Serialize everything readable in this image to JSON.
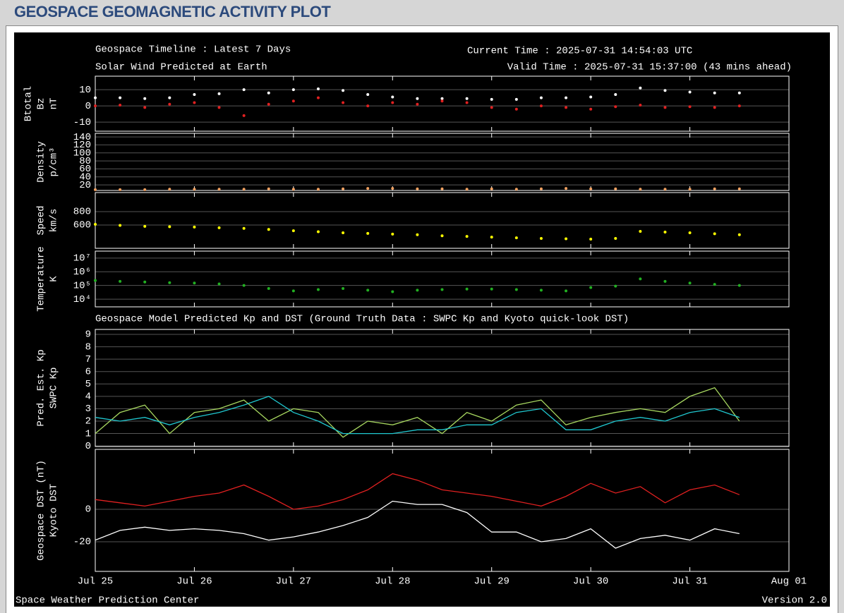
{
  "header": {
    "title": "GEOSPACE GEOMAGNETIC ACTIVITY PLOT"
  },
  "footer": {
    "left": "Space Weather Prediction Center",
    "right": "Version 2.0"
  },
  "chart_data": [
    {
      "type": "scatter",
      "title": "Geospace Timeline : Latest 7 Days",
      "subtitle": "Solar Wind Predicted at Earth",
      "annotations": [
        "Current Time : 2025-07-31 14:54:03 UTC",
        "Valid Time : 2025-07-31 15:37:00 (43 mins ahead)"
      ],
      "y_unit": "nT",
      "y_unit_color": "#ffffff",
      "x": [
        0,
        0.25,
        0.5,
        0.75,
        1,
        1.25,
        1.5,
        1.75,
        2,
        2.25,
        2.5,
        2.75,
        3,
        3.25,
        3.5,
        3.75,
        4,
        4.25,
        4.5,
        4.75,
        5,
        5.25,
        5.5,
        5.75,
        6,
        6.25,
        6.5
      ],
      "series": [
        {
          "name": "Btotal",
          "color": "#ffffff",
          "values": [
            5,
            5,
            4.5,
            5,
            7,
            7.5,
            10,
            8,
            10,
            10.5,
            9.5,
            7,
            5.5,
            4.5,
            4.5,
            4.5,
            4,
            4,
            5,
            5,
            5.5,
            7,
            11,
            9.5,
            8.5,
            8,
            8
          ]
        },
        {
          "name": "Bz",
          "color": "#e02020",
          "values": [
            0,
            0.5,
            -1,
            1,
            2,
            -1,
            -6,
            1,
            3,
            5,
            2,
            0,
            2,
            1,
            3,
            2,
            -1,
            -2,
            0,
            -1,
            -2,
            -0.5,
            0.5,
            -1,
            -0.5,
            -1,
            0
          ]
        }
      ],
      "xlim": [
        0,
        7
      ],
      "ylim": [
        -15.6,
        18.3
      ],
      "yticks": [
        -10,
        0,
        10
      ],
      "grid": true
    },
    {
      "type": "scatter",
      "y_unit": "p/cm³",
      "y_unit_color": "#f0a060",
      "x": [
        0,
        0.25,
        0.5,
        0.75,
        1,
        1.25,
        1.5,
        1.75,
        2,
        2.25,
        2.5,
        2.75,
        3,
        3.25,
        3.5,
        3.75,
        4,
        4.25,
        4.5,
        4.75,
        5,
        5.25,
        5.5,
        5.75,
        6,
        6.25,
        6.5
      ],
      "series": [
        {
          "name": "Density",
          "color": "#f0a060",
          "values": [
            8,
            8,
            8,
            9,
            9,
            9,
            9,
            10,
            9,
            9,
            10,
            11,
            11,
            10,
            10,
            9,
            10,
            9,
            10,
            11,
            10,
            10,
            9,
            9,
            9,
            10,
            10
          ]
        }
      ],
      "xlim": [
        0,
        7
      ],
      "ylim": [
        6,
        149
      ],
      "yticks": [
        20,
        40,
        60,
        80,
        100,
        120,
        140
      ],
      "grid": true
    },
    {
      "type": "scatter",
      "y_unit": "km/s",
      "y_unit_color": "#ffff00",
      "x": [
        0,
        0.25,
        0.5,
        0.75,
        1,
        1.25,
        1.5,
        1.75,
        2,
        2.25,
        2.5,
        2.75,
        3,
        3.25,
        3.5,
        3.75,
        4,
        4.25,
        4.5,
        4.75,
        5,
        5.25,
        5.5,
        5.75,
        6,
        6.25,
        6.5
      ],
      "series": [
        {
          "name": "Speed",
          "color": "#ffff00",
          "values": [
            610,
            595,
            580,
            575,
            570,
            560,
            550,
            535,
            515,
            500,
            485,
            475,
            465,
            455,
            440,
            430,
            420,
            410,
            400,
            395,
            390,
            400,
            505,
            495,
            485,
            470,
            455
          ]
        }
      ],
      "xlim": [
        0,
        7
      ],
      "ylim": [
        253,
        1084
      ],
      "yticks": [
        600,
        800
      ],
      "grid": true
    },
    {
      "type": "scatter",
      "y_unit": "K",
      "y_unit_color": "#22b022",
      "log_y": true,
      "x": [
        0,
        0.25,
        0.5,
        0.75,
        1,
        1.25,
        1.5,
        1.75,
        2,
        2.25,
        2.5,
        2.75,
        3,
        3.25,
        3.5,
        3.75,
        4,
        4.25,
        4.5,
        4.75,
        5,
        5.25,
        5.5,
        5.75,
        6,
        6.25,
        6.5
      ],
      "series": [
        {
          "name": "Temperature",
          "color": "#22b022",
          "values": [
            230000,
            200000,
            180000,
            160000,
            150000,
            130000,
            100000,
            60000,
            40000,
            50000,
            60000,
            45000,
            35000,
            45000,
            50000,
            55000,
            55000,
            50000,
            45000,
            40000,
            70000,
            90000,
            300000,
            200000,
            150000,
            120000,
            100000
          ]
        }
      ],
      "xlim": [
        0,
        7
      ],
      "ylim": [
        2750,
        32000000
      ],
      "yticks": [
        {
          "value": 10000,
          "label": "10⁴"
        },
        {
          "value": 100000,
          "label": "10⁵"
        },
        {
          "value": 1000000,
          "label": "10⁶"
        },
        {
          "value": 10000000,
          "label": "10⁷"
        }
      ],
      "grid": true
    },
    {
      "type": "line",
      "title": "Geospace Model Predicted Kp and DST (Ground Truth Data : SWPC Kp and Kyoto quick-look DST)",
      "x": [
        0,
        0.25,
        0.5,
        0.75,
        1,
        1.25,
        1.5,
        1.75,
        2,
        2.25,
        2.5,
        2.75,
        3,
        3.25,
        3.5,
        3.75,
        4,
        4.25,
        4.5,
        4.75,
        5,
        5.25,
        5.5,
        5.75,
        6,
        6.25,
        6.5
      ],
      "series": [
        {
          "name": "Pred. Est. Kp",
          "color": "#a8d860",
          "values": [
            1,
            2.7,
            3.3,
            1,
            2.7,
            3,
            3.7,
            2,
            3,
            2.7,
            0.7,
            2,
            1.7,
            2.3,
            1,
            2.7,
            2,
            3.3,
            3.7,
            1.7,
            2.3,
            2.7,
            3,
            2.7,
            4,
            4.7,
            2
          ]
        },
        {
          "name": "SWPC Kp",
          "color": "#20c8d0",
          "values": [
            2.3,
            2,
            2.3,
            1.7,
            2.3,
            2.7,
            3.3,
            4,
            2.7,
            2,
            1,
            1,
            1,
            1.3,
            1.3,
            1.7,
            1.7,
            2.7,
            3,
            1.3,
            1.3,
            2,
            2.3,
            2,
            2.7,
            3,
            2.3
          ]
        }
      ],
      "xlim": [
        0,
        7
      ],
      "ylim": [
        -0.05,
        9.4
      ],
      "yticks": [
        0,
        1,
        2,
        3,
        4,
        5,
        6,
        7,
        8,
        9
      ],
      "grid": true
    },
    {
      "type": "line",
      "x": [
        0,
        0.25,
        0.5,
        0.75,
        1,
        1.25,
        1.5,
        1.75,
        2,
        2.25,
        2.5,
        2.75,
        3,
        3.25,
        3.5,
        3.75,
        4,
        4.25,
        4.5,
        4.75,
        5,
        5.25,
        5.5,
        5.75,
        6,
        6.25,
        6.5
      ],
      "series": [
        {
          "name": "Geospace DST (nT)",
          "color": "#ffffff",
          "values": [
            -19,
            -13,
            -11,
            -13,
            -12,
            -13,
            -15,
            -19,
            -17,
            -14,
            -10,
            -5,
            5,
            3,
            3,
            -2,
            -14,
            -14,
            -20,
            -18,
            -12,
            -24,
            -18,
            -16,
            -19,
            -12,
            -15
          ]
        },
        {
          "name": "Kyoto DST",
          "color": "#e02020",
          "values": [
            6,
            4,
            2,
            5,
            8,
            10,
            15,
            8,
            0,
            2,
            6,
            12,
            22,
            18,
            12,
            10,
            8,
            5,
            2,
            8,
            16,
            10,
            14,
            4,
            12,
            15,
            9
          ]
        }
      ],
      "xlim": [
        0,
        7
      ],
      "ylim": [
        -38.3,
        37
      ],
      "yticks": [
        -20,
        0
      ],
      "grid": true,
      "xticks": [
        {
          "value": 0,
          "label": "Jul 25"
        },
        {
          "value": 1,
          "label": "Jul 26"
        },
        {
          "value": 2,
          "label": "Jul 27"
        },
        {
          "value": 3,
          "label": "Jul 28"
        },
        {
          "value": 4,
          "label": "Jul 29"
        },
        {
          "value": 5,
          "label": "Jul 30"
        },
        {
          "value": 6,
          "label": "Jul 31"
        },
        {
          "value": 7,
          "label": "Aug 01"
        }
      ]
    }
  ]
}
